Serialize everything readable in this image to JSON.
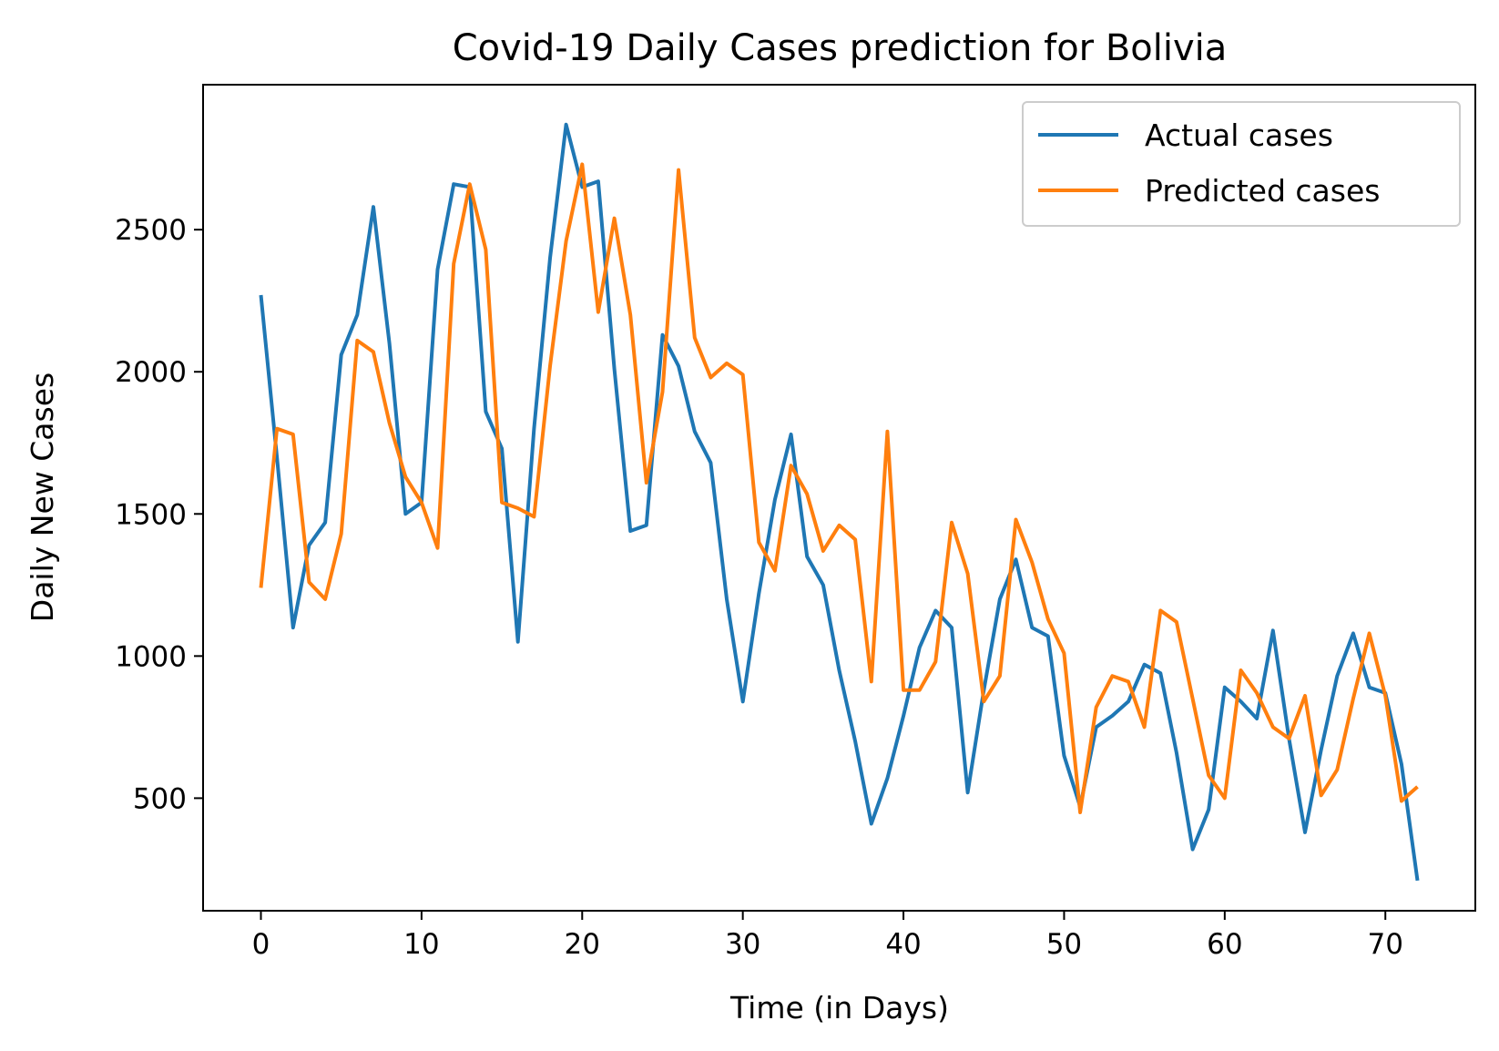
{
  "chart_data": {
    "type": "line",
    "title": "Covid-19 Daily Cases prediction for Bolivia",
    "xlabel": "Time (in Days)",
    "ylabel": "Daily New Cases",
    "xlim": [
      -3.6,
      75.6
    ],
    "ylim": [
      104,
      3010
    ],
    "xticks": [
      0,
      10,
      20,
      30,
      40,
      50,
      60,
      70
    ],
    "yticks": [
      500,
      1000,
      1500,
      2000,
      2500
    ],
    "grid": false,
    "legend_position": "top-right",
    "series": [
      {
        "name": "Actual cases",
        "color": "#1f77b4",
        "values": [
          2270,
          1700,
          1100,
          1390,
          1470,
          2060,
          2200,
          2580,
          2100,
          1500,
          1540,
          2360,
          2660,
          2650,
          1860,
          1730,
          1050,
          1800,
          2400,
          2870,
          2650,
          2670,
          2010,
          1440,
          1460,
          2130,
          2020,
          1790,
          1680,
          1200,
          840,
          1220,
          1550,
          1780,
          1350,
          1250,
          950,
          700,
          410,
          570,
          790,
          1030,
          1160,
          1100,
          520,
          880,
          1200,
          1340,
          1100,
          1070,
          650,
          470,
          750,
          790,
          840,
          970,
          940,
          660,
          320,
          460,
          890,
          840,
          780,
          1090,
          710,
          380,
          670,
          930,
          1080,
          890,
          870,
          620,
          210
        ]
      },
      {
        "name": "Predicted cases",
        "color": "#ff7f0e",
        "values": [
          1240,
          1800,
          1780,
          1260,
          1200,
          1430,
          2110,
          2070,
          1820,
          1630,
          1540,
          1380,
          2380,
          2660,
          2430,
          1540,
          1520,
          1490,
          2020,
          2460,
          2730,
          2210,
          2540,
          2200,
          1610,
          1930,
          2710,
          2120,
          1980,
          2030,
          1990,
          1400,
          1300,
          1670,
          1570,
          1370,
          1460,
          1410,
          910,
          1790,
          880,
          880,
          980,
          1470,
          1290,
          840,
          930,
          1480,
          1330,
          1130,
          1010,
          450,
          820,
          930,
          910,
          750,
          1160,
          1120,
          850,
          580,
          500,
          950,
          870,
          750,
          710,
          860,
          510,
          600,
          850,
          1080,
          860,
          490,
          540
        ]
      }
    ]
  }
}
